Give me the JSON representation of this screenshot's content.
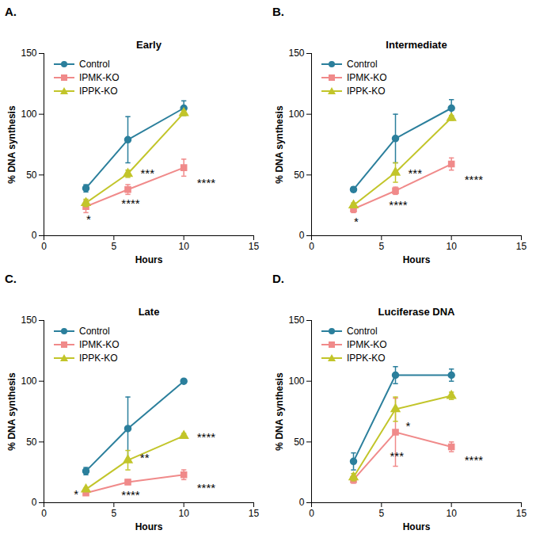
{
  "chart_data": [
    {
      "type": "line",
      "panel": "A.",
      "title": "Early",
      "x_label": "Hours",
      "y_label": "% DNA synthesis",
      "x": [
        3,
        6,
        10
      ],
      "xlim": [
        0,
        15
      ],
      "xticks": [
        0,
        5,
        10,
        15
      ],
      "ylim": [
        0,
        150
      ],
      "yticks": [
        0,
        50,
        100,
        150
      ],
      "legend": "top-left",
      "series": [
        {
          "name": "Control",
          "color": "#2b7f9c",
          "marker": "circle",
          "values": [
            39,
            79,
            105
          ],
          "errors": [
            3,
            19,
            6
          ]
        },
        {
          "name": "IPMK-KO",
          "color": "#f08a8a",
          "marker": "square",
          "values": [
            24,
            38,
            56
          ],
          "errors": [
            5,
            4,
            7
          ]
        },
        {
          "name": "IPPK-KO",
          "color": "#c2c52a",
          "marker": "triangle",
          "values": [
            27,
            51,
            101
          ],
          "errors": [
            3,
            3,
            2
          ]
        }
      ],
      "annotations": [
        {
          "x": 3.2,
          "y": 13,
          "text": "*"
        },
        {
          "x": 6.2,
          "y": 26,
          "text": "****"
        },
        {
          "x": 7.4,
          "y": 51,
          "text": "***"
        },
        {
          "x": 11.6,
          "y": 43,
          "text": "****"
        }
      ]
    },
    {
      "type": "line",
      "panel": "B.",
      "title": "Intermediate",
      "x_label": "Hours",
      "y_label": "% DNA synthesis",
      "x": [
        3,
        6,
        10
      ],
      "xlim": [
        0,
        15
      ],
      "xticks": [
        0,
        5,
        10,
        15
      ],
      "ylim": [
        0,
        150
      ],
      "yticks": [
        0,
        50,
        100,
        150
      ],
      "legend": "top-left",
      "series": [
        {
          "name": "Control",
          "color": "#2b7f9c",
          "marker": "circle",
          "values": [
            38,
            80,
            105
          ],
          "errors": [
            2,
            20,
            7
          ]
        },
        {
          "name": "IPMK-KO",
          "color": "#f08a8a",
          "marker": "square",
          "values": [
            22,
            37,
            59
          ],
          "errors": [
            3,
            3,
            5
          ]
        },
        {
          "name": "IPPK-KO",
          "color": "#c2c52a",
          "marker": "triangle",
          "values": [
            25,
            52,
            97
          ],
          "errors": [
            2,
            8,
            2
          ]
        }
      ],
      "annotations": [
        {
          "x": 3.2,
          "y": 11,
          "text": "*"
        },
        {
          "x": 6.2,
          "y": 25,
          "text": "****"
        },
        {
          "x": 7.4,
          "y": 51,
          "text": "***"
        },
        {
          "x": 11.6,
          "y": 46,
          "text": "****"
        }
      ]
    },
    {
      "type": "line",
      "panel": "C.",
      "title": "Late",
      "x_label": "Hours",
      "y_label": "% DNA synthesis",
      "x": [
        3,
        6,
        10
      ],
      "xlim": [
        0,
        15
      ],
      "xticks": [
        0,
        5,
        10,
        15
      ],
      "ylim": [
        0,
        150
      ],
      "yticks": [
        0,
        50,
        100,
        150
      ],
      "legend": "top-left",
      "series": [
        {
          "name": "Control",
          "color": "#2b7f9c",
          "marker": "circle",
          "values": [
            26,
            61,
            100
          ],
          "errors": [
            3,
            26,
            1
          ]
        },
        {
          "name": "IPMK-KO",
          "color": "#f08a8a",
          "marker": "square",
          "values": [
            8,
            17,
            23
          ],
          "errors": [
            1,
            2,
            4
          ]
        },
        {
          "name": "IPPK-KO",
          "color": "#c2c52a",
          "marker": "triangle",
          "values": [
            11,
            35,
            55
          ],
          "errors": [
            1,
            8,
            2
          ]
        }
      ],
      "annotations": [
        {
          "x": 2.3,
          "y": 7,
          "text": "*"
        },
        {
          "x": 6.2,
          "y": 6,
          "text": "****"
        },
        {
          "x": 7.2,
          "y": 37,
          "text": "**"
        },
        {
          "x": 11.6,
          "y": 54,
          "text": "****"
        },
        {
          "x": 11.6,
          "y": 12,
          "text": "****"
        }
      ]
    },
    {
      "type": "line",
      "panel": "D.",
      "title": "Luciferase DNA",
      "x_label": "Hours",
      "y_label": "% DNA synthesis",
      "x": [
        3,
        6,
        10
      ],
      "xlim": [
        0,
        15
      ],
      "xticks": [
        0,
        5,
        10,
        15
      ],
      "ylim": [
        0,
        150
      ],
      "yticks": [
        0,
        50,
        100,
        150
      ],
      "legend": "top-left",
      "series": [
        {
          "name": "Control",
          "color": "#2b7f9c",
          "marker": "circle",
          "values": [
            34,
            105,
            105
          ],
          "errors": [
            7,
            7,
            5
          ]
        },
        {
          "name": "IPMK-KO",
          "color": "#f08a8a",
          "marker": "square",
          "values": [
            19,
            58,
            46
          ],
          "errors": [
            3,
            28,
            4
          ]
        },
        {
          "name": "IPPK-KO",
          "color": "#c2c52a",
          "marker": "triangle",
          "values": [
            21,
            77,
            88
          ],
          "errors": [
            3,
            10,
            3
          ]
        }
      ],
      "annotations": [
        {
          "x": 6.9,
          "y": 63,
          "text": "*"
        },
        {
          "x": 6.1,
          "y": 38,
          "text": "***"
        },
        {
          "x": 11.6,
          "y": 35,
          "text": "****"
        }
      ]
    }
  ]
}
